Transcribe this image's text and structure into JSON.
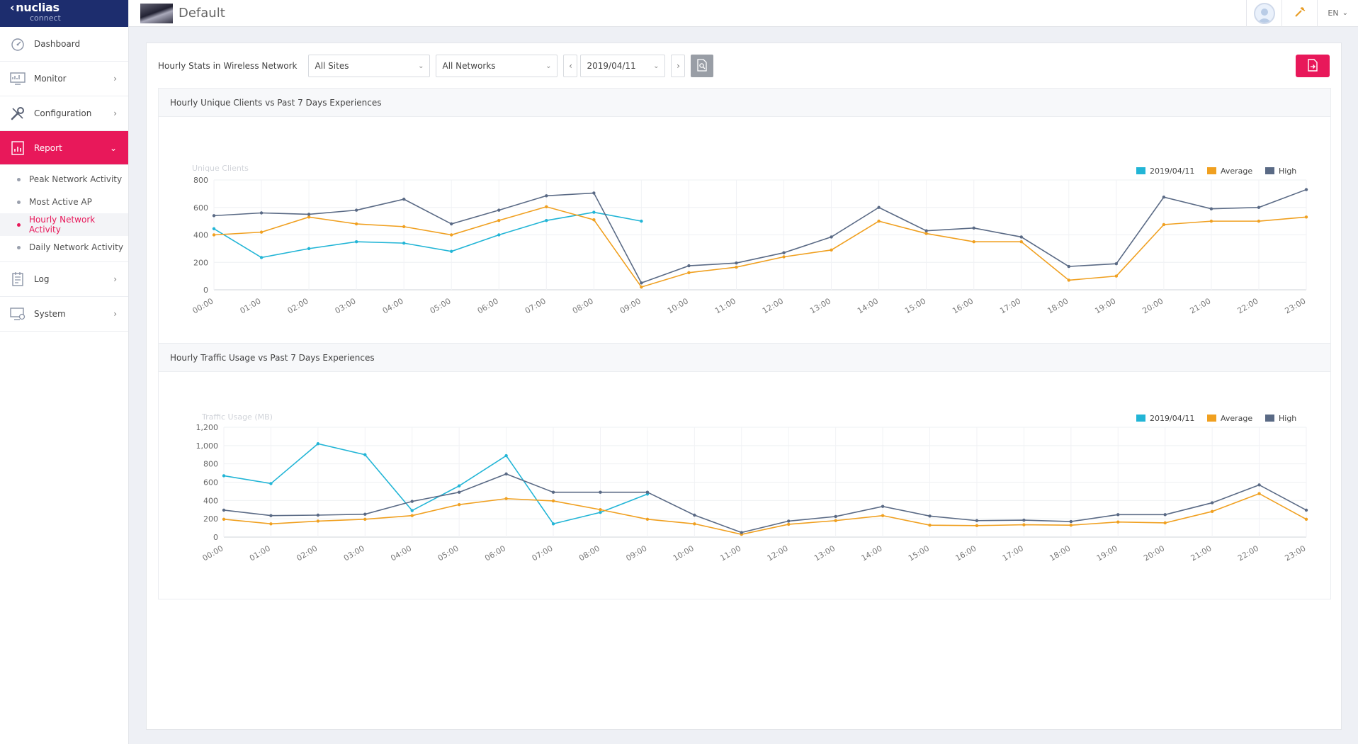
{
  "app": {
    "logo_main": "nuclias",
    "logo_sub": "connect",
    "page_title": "Default",
    "language": "EN"
  },
  "sidebar": {
    "items": [
      {
        "label": "Dashboard",
        "icon": "dashboard-icon",
        "has_arrow": false
      },
      {
        "label": "Monitor",
        "icon": "monitor-icon",
        "has_arrow": true
      },
      {
        "label": "Configuration",
        "icon": "wrench-icon",
        "has_arrow": true
      },
      {
        "label": "Report",
        "icon": "report-icon",
        "has_arrow": true,
        "active": true
      },
      {
        "label": "Log",
        "icon": "log-icon",
        "has_arrow": true
      },
      {
        "label": "System",
        "icon": "system-icon",
        "has_arrow": true
      }
    ],
    "report_sub": [
      {
        "label": "Peak Network Activity"
      },
      {
        "label": "Most Active AP"
      },
      {
        "label": "Hourly Network Activity",
        "active": true
      },
      {
        "label": "Daily Network Activity"
      }
    ]
  },
  "filters": {
    "label": "Hourly Stats in Wireless Network",
    "site": "All Sites",
    "network": "All Networks",
    "date": "2019/04/11"
  },
  "colors": {
    "accent": "#e8185a",
    "series_today": "#22b5d6",
    "series_average": "#f0a020",
    "series_high": "#5a6a85"
  },
  "chart_data": [
    {
      "type": "line",
      "title": "Hourly Unique Clients vs Past 7 Days Experiences",
      "ylabel": "Unique Clients",
      "xlabel": "",
      "categories": [
        "00:00",
        "01:00",
        "02:00",
        "03:00",
        "04:00",
        "05:00",
        "06:00",
        "07:00",
        "08:00",
        "09:00",
        "10:00",
        "11:00",
        "12:00",
        "13:00",
        "14:00",
        "15:00",
        "16:00",
        "17:00",
        "18:00",
        "19:00",
        "20:00",
        "21:00",
        "22:00",
        "23:00"
      ],
      "ylim": [
        0,
        800
      ],
      "yticks": [
        0,
        200,
        400,
        600,
        800
      ],
      "ytick_labels": [
        "0",
        "200",
        "400",
        "600",
        "800"
      ],
      "legend_position": "top-right",
      "series": [
        {
          "name": "2019/04/11",
          "color": "#22b5d6",
          "values": [
            445,
            235,
            300,
            350,
            340,
            280,
            400,
            505,
            565,
            500,
            null,
            null,
            null,
            null,
            null,
            null,
            null,
            null,
            null,
            null,
            null,
            null,
            null,
            null
          ]
        },
        {
          "name": "Average",
          "color": "#f0a020",
          "values": [
            400,
            420,
            530,
            480,
            460,
            400,
            505,
            605,
            510,
            20,
            125,
            165,
            240,
            290,
            500,
            410,
            350,
            350,
            70,
            100,
            475,
            500,
            500,
            530
          ]
        },
        {
          "name": "High",
          "color": "#5a6a85",
          "values": [
            540,
            560,
            550,
            580,
            660,
            480,
            580,
            685,
            705,
            50,
            175,
            195,
            270,
            385,
            600,
            430,
            450,
            385,
            170,
            190,
            675,
            590,
            600,
            730
          ]
        }
      ]
    },
    {
      "type": "line",
      "title": "Hourly Traffic Usage vs Past 7 Days Experiences",
      "ylabel": "Traffic Usage (MB)",
      "xlabel": "",
      "categories": [
        "00:00",
        "01:00",
        "02:00",
        "03:00",
        "04:00",
        "05:00",
        "06:00",
        "07:00",
        "08:00",
        "09:00",
        "10:00",
        "11:00",
        "12:00",
        "13:00",
        "14:00",
        "15:00",
        "16:00",
        "17:00",
        "18:00",
        "19:00",
        "20:00",
        "21:00",
        "22:00",
        "23:00"
      ],
      "ylim": [
        0,
        1200
      ],
      "yticks": [
        0,
        200,
        400,
        600,
        800,
        1000,
        1200
      ],
      "ytick_labels": [
        "0",
        "200",
        "400",
        "600",
        "800",
        "1,000",
        "1,200"
      ],
      "legend_position": "top-right",
      "series": [
        {
          "name": "2019/04/11",
          "color": "#22b5d6",
          "values": [
            670,
            585,
            1020,
            900,
            290,
            560,
            890,
            145,
            270,
            470,
            null,
            null,
            null,
            null,
            null,
            null,
            null,
            null,
            null,
            null,
            null,
            null,
            null,
            null
          ]
        },
        {
          "name": "Average",
          "color": "#f0a020",
          "values": [
            195,
            145,
            175,
            195,
            235,
            355,
            420,
            395,
            300,
            195,
            145,
            30,
            140,
            180,
            235,
            130,
            125,
            135,
            130,
            165,
            155,
            280,
            475,
            195
          ]
        },
        {
          "name": "High",
          "color": "#5a6a85",
          "values": [
            295,
            235,
            240,
            250,
            390,
            490,
            690,
            490,
            490,
            490,
            240,
            50,
            175,
            225,
            335,
            230,
            180,
            185,
            170,
            245,
            245,
            375,
            570,
            295
          ]
        }
      ]
    }
  ]
}
